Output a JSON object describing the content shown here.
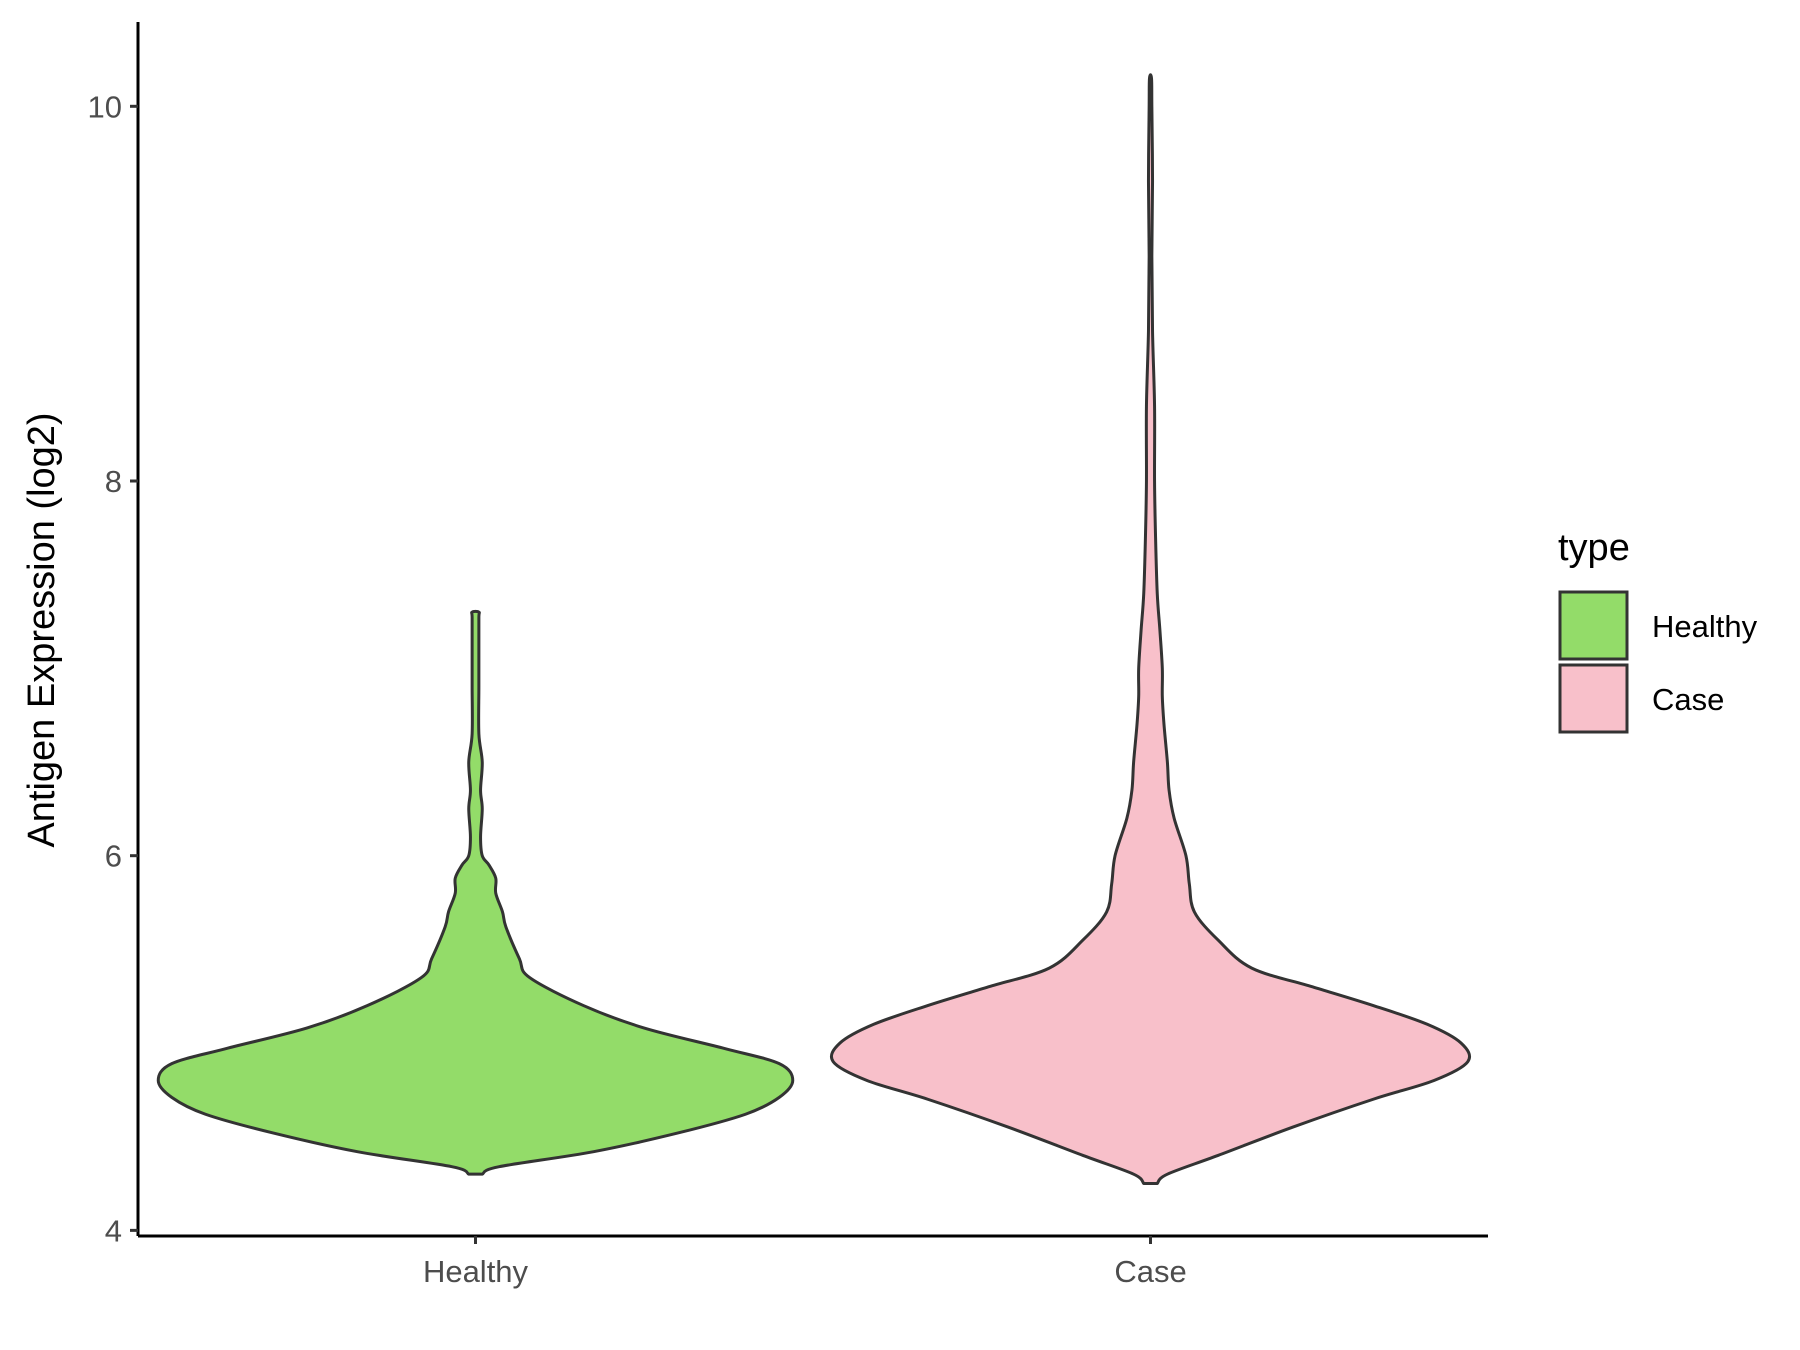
{
  "chart_data": {
    "type": "violin",
    "title": "",
    "xlabel": "",
    "ylabel": "Antigen Expression (log2)",
    "categories": [
      "Healthy",
      "Case"
    ],
    "ylim": [
      3.97,
      10.45
    ],
    "yticks": [
      4,
      6,
      8,
      10
    ],
    "grid": false,
    "legend": {
      "title": "type",
      "position": "right",
      "entries": [
        {
          "label": "Healthy",
          "color": "#93dc69"
        },
        {
          "label": "Case",
          "color": "#f8c0ca"
        }
      ]
    },
    "series": [
      {
        "name": "Healthy",
        "color": "#93dc69",
        "min": 4.3,
        "max": 7.3,
        "density_profile": [
          [
            4.3,
            0.02
          ],
          [
            4.34,
            0.07
          ],
          [
            4.42,
            0.35
          ],
          [
            4.52,
            0.6
          ],
          [
            4.62,
            0.8
          ],
          [
            4.71,
            0.9
          ],
          [
            4.8,
            0.94
          ],
          [
            4.89,
            0.9
          ],
          [
            4.97,
            0.74
          ],
          [
            5.08,
            0.5
          ],
          [
            5.2,
            0.32
          ],
          [
            5.35,
            0.16
          ],
          [
            5.45,
            0.13
          ],
          [
            5.62,
            0.09
          ],
          [
            5.7,
            0.08
          ],
          [
            5.8,
            0.06
          ],
          [
            5.88,
            0.06
          ],
          [
            5.95,
            0.04
          ],
          [
            6.0,
            0.02
          ],
          [
            6.1,
            0.015
          ],
          [
            6.25,
            0.02
          ],
          [
            6.35,
            0.015
          ],
          [
            6.5,
            0.02
          ],
          [
            6.65,
            0.01
          ],
          [
            6.9,
            0.01
          ],
          [
            7.1,
            0.01
          ],
          [
            7.27,
            0.01
          ],
          [
            7.3,
            0.01
          ]
        ]
      },
      {
        "name": "Case",
        "color": "#f8c0ca",
        "min": 4.25,
        "max": 10.15,
        "density_profile": [
          [
            4.25,
            0.02
          ],
          [
            4.3,
            0.05
          ],
          [
            4.4,
            0.2
          ],
          [
            4.55,
            0.42
          ],
          [
            4.7,
            0.66
          ],
          [
            4.8,
            0.84
          ],
          [
            4.9,
            0.94
          ],
          [
            5.0,
            0.92
          ],
          [
            5.1,
            0.82
          ],
          [
            5.2,
            0.66
          ],
          [
            5.3,
            0.48
          ],
          [
            5.4,
            0.3
          ],
          [
            5.55,
            0.2
          ],
          [
            5.7,
            0.13
          ],
          [
            5.85,
            0.115
          ],
          [
            6.0,
            0.105
          ],
          [
            6.2,
            0.07
          ],
          [
            6.35,
            0.055
          ],
          [
            6.5,
            0.05
          ],
          [
            6.7,
            0.04
          ],
          [
            6.85,
            0.035
          ],
          [
            7.0,
            0.035
          ],
          [
            7.2,
            0.028
          ],
          [
            7.4,
            0.02
          ],
          [
            7.7,
            0.015
          ],
          [
            8.0,
            0.012
          ],
          [
            8.4,
            0.012
          ],
          [
            8.8,
            0.006
          ],
          [
            9.2,
            0.004
          ],
          [
            9.6,
            0.006
          ],
          [
            10.0,
            0.004
          ],
          [
            10.15,
            0.003
          ]
        ]
      }
    ]
  }
}
